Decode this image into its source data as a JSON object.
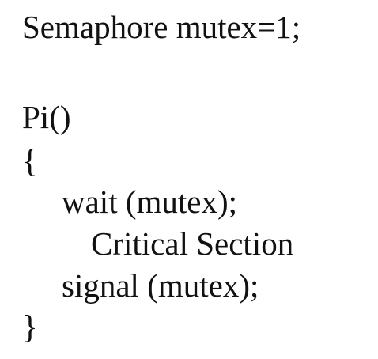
{
  "code_lines": [
    "Semaphore mutex=1;",
    "Pi()",
    "{",
    "wait (mutex);",
    "Critical Section",
    "signal (mutex);",
    "}"
  ]
}
